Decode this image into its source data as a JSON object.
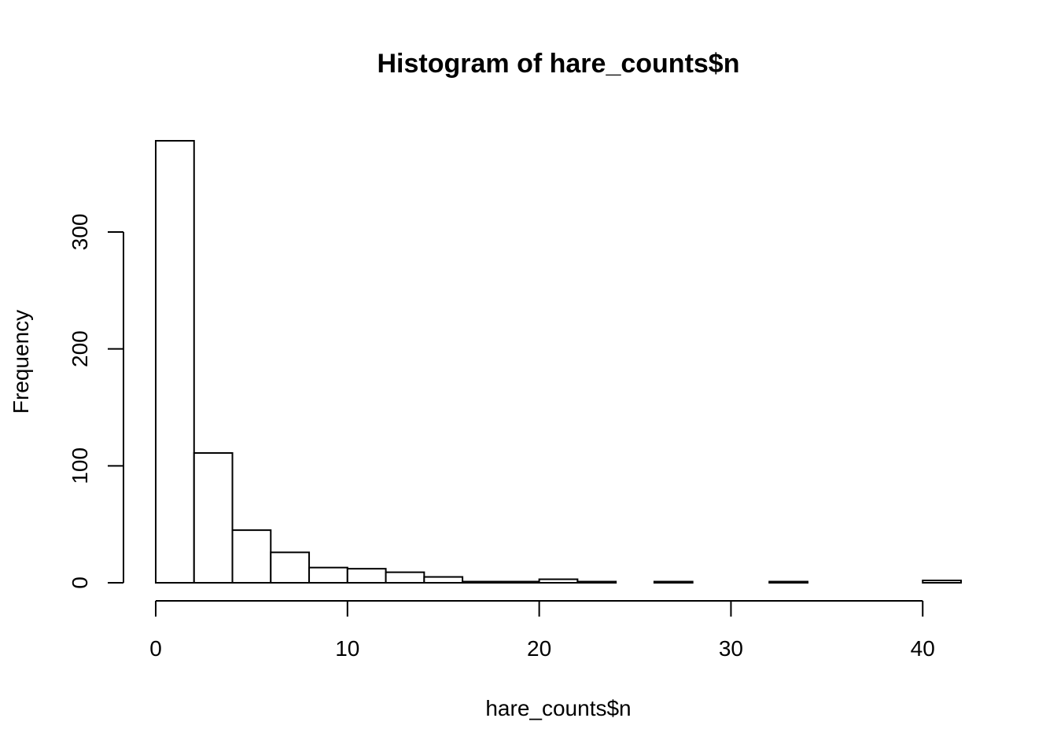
{
  "chart_data": {
    "type": "bar",
    "title": "Histogram of hare_counts$n",
    "xlabel": "hare_counts$n",
    "ylabel": "Frequency",
    "bin_edges": [
      0,
      2,
      4,
      6,
      8,
      10,
      12,
      14,
      16,
      18,
      20,
      22,
      24,
      26,
      28,
      30,
      32,
      34,
      36,
      38,
      40,
      42
    ],
    "values": [
      378,
      111,
      45,
      26,
      13,
      12,
      9,
      5,
      1,
      1,
      3,
      1,
      0,
      1,
      0,
      0,
      1,
      0,
      0,
      0,
      2
    ],
    "xlim": [
      0,
      42
    ],
    "ylim": [
      0,
      378
    ],
    "x_ticks": [
      0,
      10,
      20,
      30,
      40
    ],
    "x_tick_labels": [
      "0",
      "10",
      "20",
      "30",
      "40"
    ],
    "y_ticks": [
      0,
      100,
      200,
      300
    ],
    "y_tick_labels": [
      "0",
      "100",
      "200",
      "300"
    ],
    "grid": false,
    "bar_fill": "#ffffff",
    "bar_stroke": "#000000"
  }
}
